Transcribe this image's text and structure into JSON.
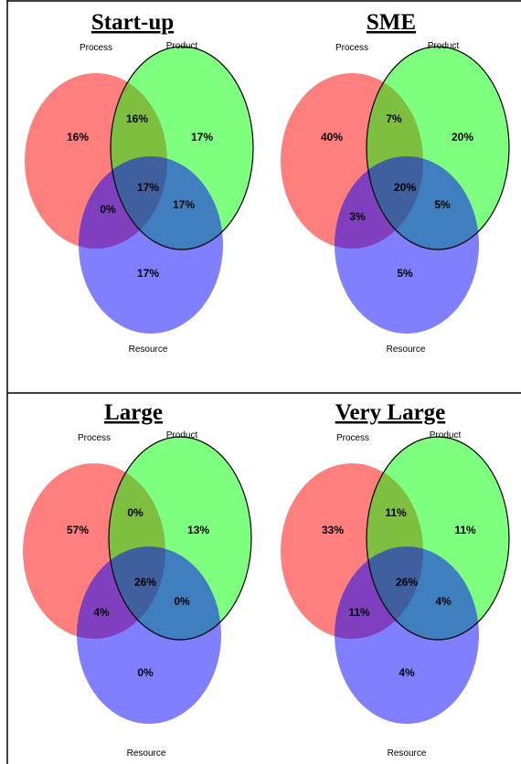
{
  "colors": {
    "process": "#ff0000",
    "product": "#00ff00",
    "resource": "#0000ff",
    "border": "#000000"
  },
  "panels": [
    {
      "title": "Start-up",
      "labels": {
        "process": "Process",
        "product": "Product",
        "resource": "Resource"
      },
      "values": {
        "process_only": "16%",
        "process_product": "16%",
        "product_only": "17%",
        "all_three": "17%",
        "process_resource": "0%",
        "product_resource": "17%",
        "resource_only": "17%"
      }
    },
    {
      "title": "SME",
      "labels": {
        "process": "Process",
        "product": "Product",
        "resource": "Resource"
      },
      "values": {
        "process_only": "40%",
        "process_product": "7%",
        "product_only": "20%",
        "all_three": "20%",
        "process_resource": "3%",
        "product_resource": "5%",
        "resource_only": "5%"
      }
    },
    {
      "title": "Large",
      "labels": {
        "process": "Process",
        "product": "Product",
        "resource": "Resource"
      },
      "values": {
        "process_only": "57%",
        "process_product": "0%",
        "product_only": "13%",
        "all_three": "26%",
        "process_resource": "4%",
        "product_resource": "0%",
        "resource_only": "0%"
      }
    },
    {
      "title": "Very Large",
      "labels": {
        "process": "Process",
        "product": "Product",
        "resource": "Resource"
      },
      "values": {
        "process_only": "33%",
        "process_product": "11%",
        "product_only": "11%",
        "all_three": "26%",
        "process_resource": "11%",
        "product_resource": "4%",
        "resource_only": "4%"
      }
    }
  ]
}
